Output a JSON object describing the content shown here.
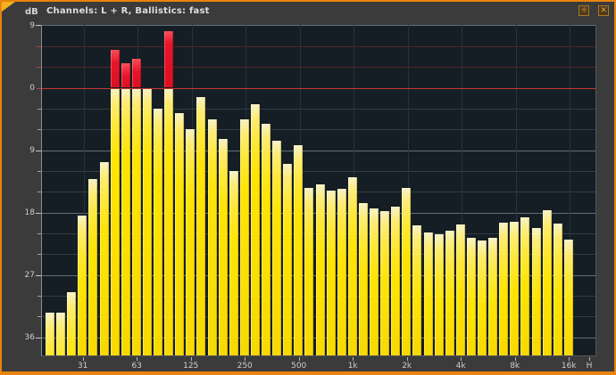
{
  "titlebar": {
    "unit_label": "dB",
    "title": "Channels: L + R, Ballistics: fast",
    "settings_glyph": "☼",
    "close_glyph": "✕"
  },
  "colors": {
    "window_border": "#e8830f",
    "chrome_bg": "#3b3b3b",
    "plot_bg": "#151e24",
    "grid_minor": "#2f3d46",
    "grid_major": "#5f7078",
    "grid_minor_above0": "#4d262c",
    "zero_line": "#c23939",
    "bar_yellow": "#ffe405",
    "bar_yellow_pale": "#f7f2c9",
    "bar_clip_red": "#e8152a",
    "tick_red": "#b04343"
  },
  "chart_data": {
    "type": "bar",
    "title": "Channels: L + R, Ballistics: fast",
    "ylabel": "dB",
    "ylim": [
      -38.7,
      9
    ],
    "grid": true,
    "zero_line_db": 0,
    "clip_threshold_db": 0,
    "y_major_ticks": [
      9,
      0,
      -9,
      -18,
      -27,
      -36
    ],
    "y_tick_labels": [
      "9",
      "0",
      "9",
      "18",
      "27",
      "36"
    ],
    "y_minor_step_db": 3,
    "x_tick_labels": [
      "31",
      "63",
      "125",
      "250",
      "500",
      "1k",
      "2k",
      "4k",
      "8k",
      "16k",
      "H"
    ],
    "bands_per_octave": 5,
    "bars_db": [
      -32.5,
      -32.5,
      -29.5,
      -18.5,
      -13.2,
      -10.7,
      5.5,
      3.5,
      4.2,
      -0.2,
      -3.0,
      8.2,
      -3.6,
      -6.0,
      -1.4,
      -4.5,
      -7.4,
      -12.0,
      -4.6,
      -2.4,
      -5.2,
      -7.6,
      -11.0,
      -8.3,
      -14.5,
      -13.9,
      -14.9,
      -14.6,
      -12.9,
      -16.7,
      -17.4,
      -17.8,
      -17.2,
      -14.4,
      -19.9,
      -20.9,
      -21.2,
      -20.6,
      -19.7,
      -21.7,
      -22.0,
      -21.7,
      -19.5,
      -19.3,
      -18.7,
      -20.2,
      -17.7,
      -19.6,
      -21.9
    ]
  }
}
